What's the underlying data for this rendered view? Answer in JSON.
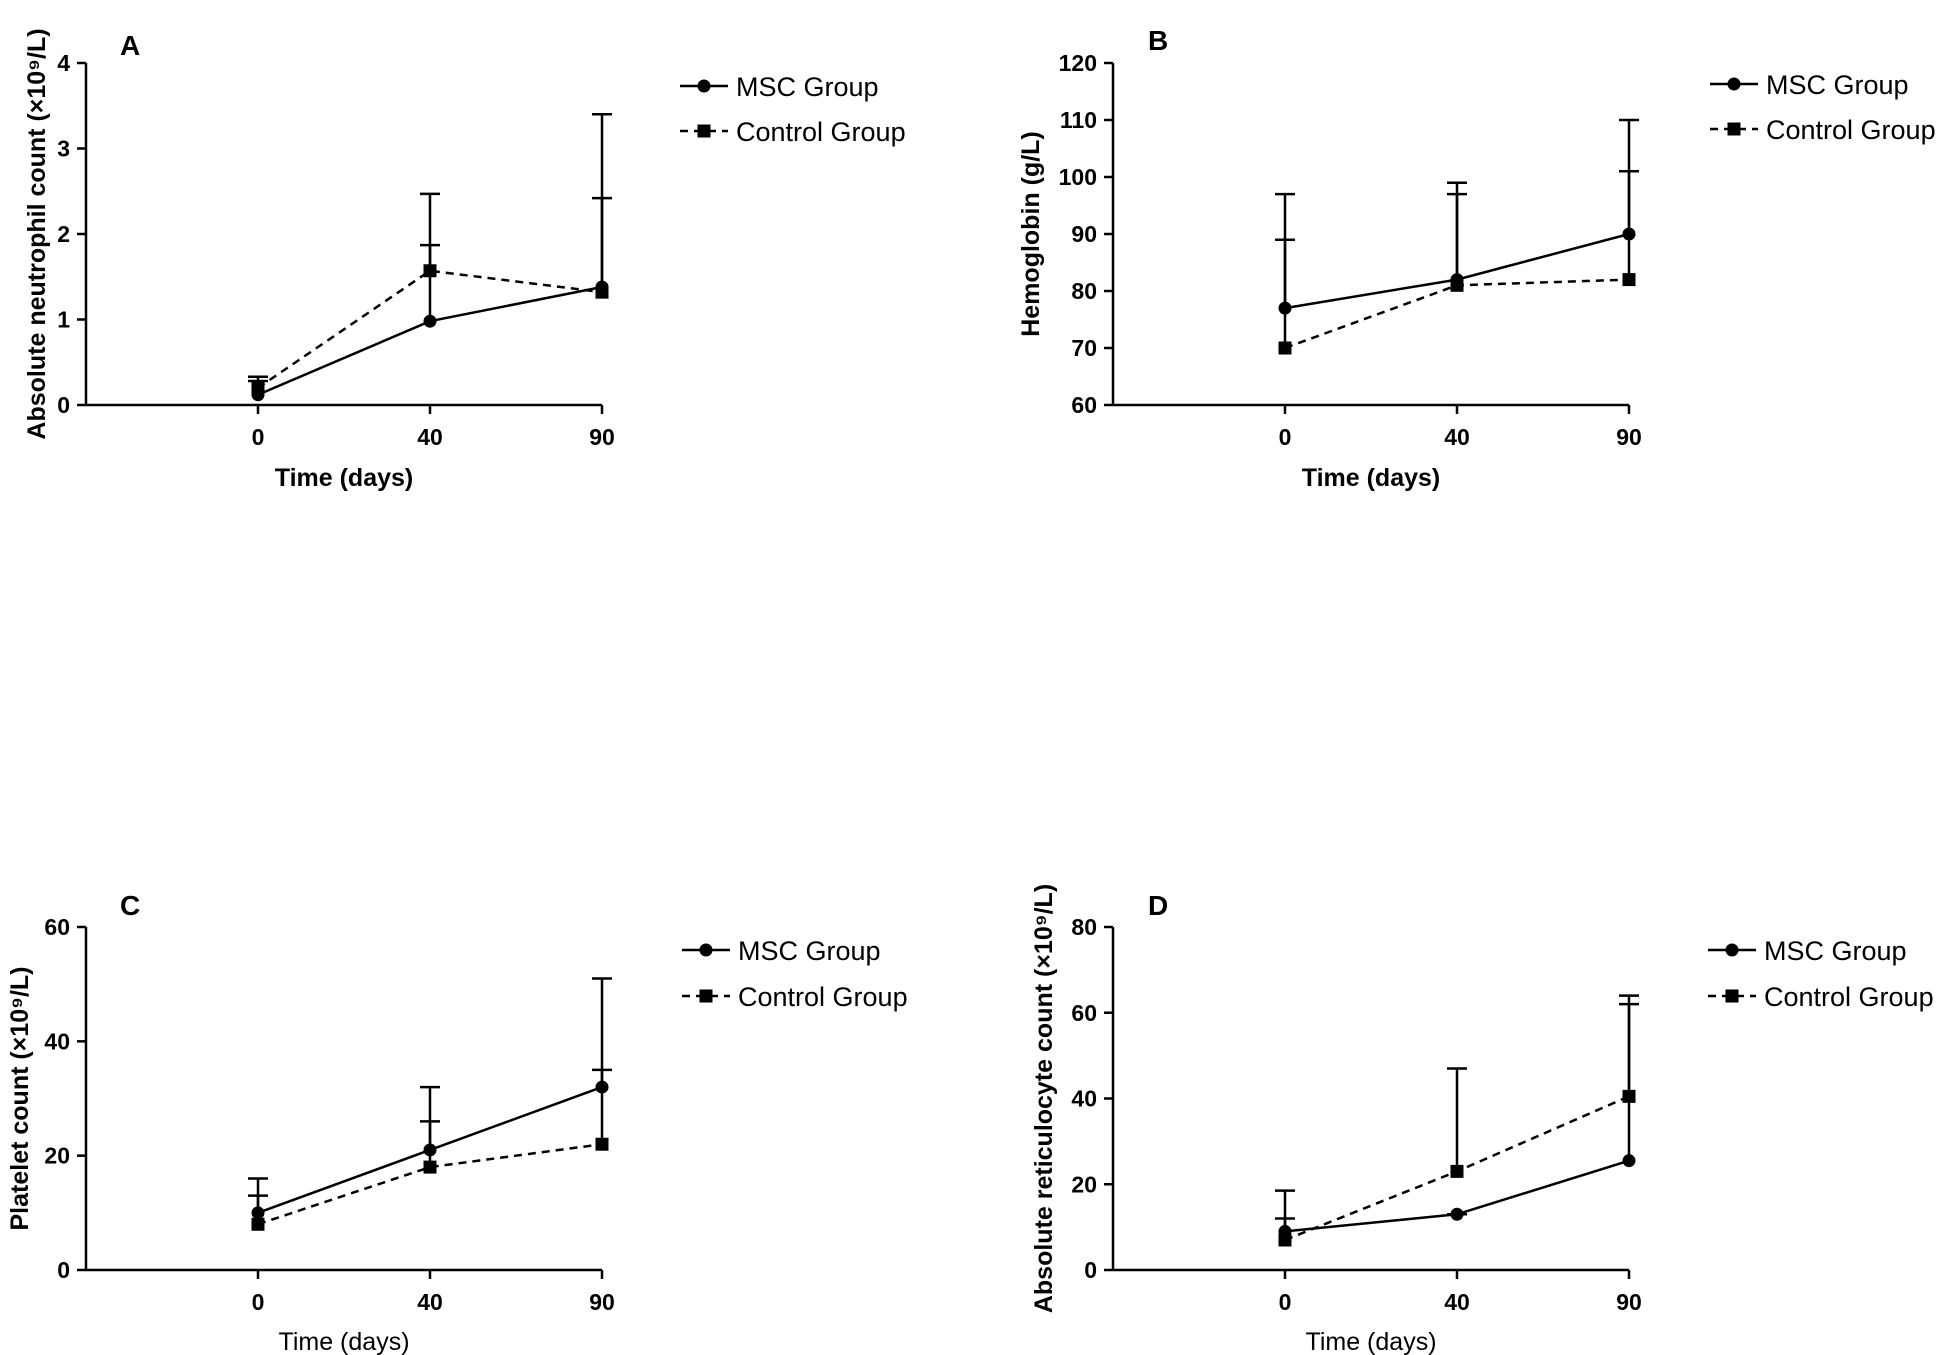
{
  "chart_data": [
    {
      "panel": "A",
      "type": "line",
      "x": [
        0,
        40,
        90
      ],
      "xticklabels": [
        "0",
        "40",
        "90"
      ],
      "xlabel": "Time (days)",
      "ylabel": "Absolute neutrophil count (×10⁹/L)",
      "ylim": [
        0,
        4
      ],
      "yticks": [
        0,
        1,
        2,
        3,
        4
      ],
      "grid": false,
      "legend_position": "right",
      "series": [
        {
          "name": "MSC Group",
          "marker": "circle",
          "line": "solid",
          "values": [
            0.12,
            0.98,
            1.38
          ],
          "error_upper": [
            0.28,
            1.87,
            3.4
          ]
        },
        {
          "name": "Control Group",
          "marker": "square",
          "line": "dashed",
          "values": [
            0.2,
            1.57,
            1.32
          ],
          "error_upper": [
            0.33,
            2.47,
            2.42
          ]
        }
      ]
    },
    {
      "panel": "B",
      "type": "line",
      "x": [
        0,
        40,
        90
      ],
      "xticklabels": [
        "0",
        "40",
        "90"
      ],
      "xlabel": "Time (days)",
      "ylabel": "Hemoglobin (g/L)",
      "ylim": [
        60,
        120
      ],
      "yticks": [
        60,
        70,
        80,
        90,
        100,
        110,
        120
      ],
      "grid": false,
      "legend_position": "right",
      "series": [
        {
          "name": "MSC Group",
          "marker": "circle",
          "line": "solid",
          "values": [
            77,
            82,
            90
          ],
          "error_upper": [
            97,
            99,
            110
          ]
        },
        {
          "name": "Control Group",
          "marker": "square",
          "line": "dashed",
          "values": [
            70,
            81,
            82
          ],
          "error_upper": [
            89,
            97,
            101
          ]
        }
      ]
    },
    {
      "panel": "C",
      "type": "line",
      "x": [
        0,
        40,
        90
      ],
      "xticklabels": [
        "0",
        "40",
        "90"
      ],
      "xlabel": "Time (days)",
      "ylabel": "Platelet count (×10⁹/L)",
      "ylim": [
        0,
        60
      ],
      "yticks": [
        0,
        20,
        40,
        60
      ],
      "grid": false,
      "legend_position": "right",
      "series": [
        {
          "name": "MSC Group",
          "marker": "circle",
          "line": "solid",
          "values": [
            10,
            21,
            32
          ],
          "error_upper": [
            16,
            32,
            51
          ]
        },
        {
          "name": "Control Group",
          "marker": "square",
          "line": "dashed",
          "values": [
            8,
            18,
            22
          ],
          "error_upper": [
            13,
            26,
            35
          ]
        }
      ]
    },
    {
      "panel": "D",
      "type": "line",
      "x": [
        0,
        40,
        90
      ],
      "xticklabels": [
        "0",
        "40",
        "90"
      ],
      "xlabel": "Time (days)",
      "ylabel": "Absolute reticulocyte count (×10⁹/L)",
      "ylim": [
        0,
        80
      ],
      "yticks": [
        0,
        20,
        40,
        60,
        80
      ],
      "grid": false,
      "legend_position": "right",
      "series": [
        {
          "name": "MSC Group",
          "marker": "circle",
          "line": "solid",
          "values": [
            9,
            13,
            25.5
          ],
          "error_upper": [
            18.5,
            13,
            62
          ]
        },
        {
          "name": "Control Group",
          "marker": "square",
          "line": "dashed",
          "values": [
            7,
            23,
            40.5
          ],
          "error_upper": [
            12,
            47,
            64
          ]
        }
      ]
    }
  ]
}
